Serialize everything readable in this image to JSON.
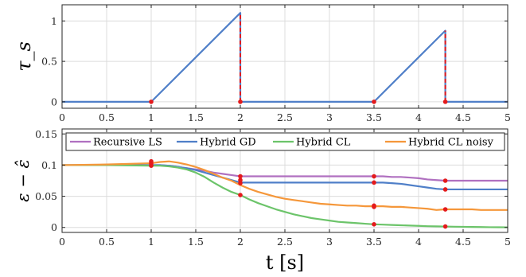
{
  "chart_data": [
    {
      "type": "line",
      "title": "",
      "xlabel": "",
      "ylabel": "τ_s",
      "xlim": [
        0,
        5
      ],
      "ylim": [
        -0.08,
        1.2
      ],
      "xticks": [
        0,
        0.5,
        1,
        1.5,
        2,
        2.5,
        3,
        3.5,
        4,
        4.5,
        5
      ],
      "xtick_labels": [
        "0",
        "0.5",
        "1",
        "1.5",
        "2",
        "2.5",
        "3",
        "3.5",
        "4",
        "4.5",
        "5"
      ],
      "yticks": [
        0,
        0.5,
        1
      ],
      "ytick_labels": [
        "0",
        "0.5",
        "1"
      ],
      "grid": true,
      "series": [
        {
          "color": "#4f7fc8",
          "x": [
            0,
            1,
            2,
            2,
            3.5,
            4.3,
            4.3,
            5
          ],
          "y": [
            0,
            0,
            1.1,
            0,
            0,
            0.88,
            0,
            0
          ]
        }
      ],
      "reset_lines": [
        {
          "x": 2,
          "y_from": 0,
          "y_to": 1.1
        },
        {
          "x": 4.3,
          "y_from": 0,
          "y_to": 0.88
        }
      ],
      "markers": [
        {
          "x": 1,
          "y": 0
        },
        {
          "x": 2,
          "y": 0
        },
        {
          "x": 3.5,
          "y": 0
        },
        {
          "x": 4.3,
          "y": 0
        }
      ],
      "accent_color": "#e41a1c"
    },
    {
      "type": "line",
      "title": "",
      "xlabel": "t [s]",
      "ylabel": "ε − ε̂",
      "xlim": [
        0,
        5
      ],
      "ylim": [
        -0.008,
        0.158
      ],
      "xticks": [
        0,
        0.5,
        1,
        1.5,
        2,
        2.5,
        3,
        3.5,
        4,
        4.5,
        5
      ],
      "xtick_labels": [
        "0",
        "0.5",
        "1",
        "1.5",
        "2",
        "2.5",
        "3",
        "3.5",
        "4",
        "4.5",
        "5"
      ],
      "yticks": [
        0,
        0.05,
        0.1,
        0.15
      ],
      "ytick_labels": [
        "0",
        "0.05",
        "0.1",
        "0.15"
      ],
      "grid": true,
      "legend": "top",
      "x": [
        0,
        0.5,
        1,
        1.1,
        1.2,
        1.3,
        1.4,
        1.5,
        1.6,
        1.7,
        1.8,
        1.9,
        2,
        2.1,
        2.2,
        2.3,
        2.4,
        2.5,
        2.6,
        2.7,
        2.8,
        2.9,
        3,
        3.1,
        3.2,
        3.3,
        3.4,
        3.5,
        3.6,
        3.7,
        3.8,
        3.9,
        4,
        4.1,
        4.2,
        4.3,
        4.4,
        4.5,
        4.6,
        4.7,
        4.8,
        4.9,
        5
      ],
      "series": [
        {
          "name": "Recursive LS",
          "color": "#b070c0",
          "values": [
            0.1,
            0.1,
            0.1,
            0.1,
            0.099,
            0.097,
            0.095,
            0.093,
            0.091,
            0.088,
            0.086,
            0.084,
            0.082,
            0.082,
            0.082,
            0.082,
            0.082,
            0.082,
            0.082,
            0.082,
            0.082,
            0.082,
            0.082,
            0.082,
            0.082,
            0.082,
            0.082,
            0.082,
            0.082,
            0.081,
            0.081,
            0.08,
            0.079,
            0.077,
            0.076,
            0.075,
            0.075,
            0.075,
            0.075,
            0.075,
            0.075,
            0.075,
            0.075
          ]
        },
        {
          "name": "Hybrid GD",
          "color": "#4f7fc8",
          "values": [
            0.1,
            0.1,
            0.1,
            0.1,
            0.099,
            0.097,
            0.095,
            0.092,
            0.088,
            0.084,
            0.08,
            0.076,
            0.072,
            0.072,
            0.072,
            0.072,
            0.072,
            0.072,
            0.072,
            0.072,
            0.072,
            0.072,
            0.072,
            0.072,
            0.072,
            0.072,
            0.072,
            0.072,
            0.072,
            0.071,
            0.07,
            0.068,
            0.066,
            0.064,
            0.062,
            0.061,
            0.061,
            0.061,
            0.061,
            0.061,
            0.061,
            0.061,
            0.061
          ]
        },
        {
          "name": "Hybrid CL",
          "color": "#6cc46a",
          "values": [
            0.1,
            0.1,
            0.099,
            0.099,
            0.098,
            0.096,
            0.093,
            0.088,
            0.081,
            0.072,
            0.064,
            0.057,
            0.052,
            0.045,
            0.039,
            0.034,
            0.029,
            0.025,
            0.021,
            0.018,
            0.015,
            0.013,
            0.011,
            0.009,
            0.008,
            0.007,
            0.006,
            0.005,
            0.0045,
            0.004,
            0.0035,
            0.003,
            0.0025,
            0.002,
            0.0017,
            0.0015,
            0.0012,
            0.001,
            0.0008,
            0.0006,
            0.0004,
            0.0003,
            0.0002
          ]
        },
        {
          "name": "Hybrid CL noisy",
          "color": "#f5973a",
          "values": [
            0.1,
            0.101,
            0.103,
            0.105,
            0.106,
            0.104,
            0.101,
            0.097,
            0.092,
            0.086,
            0.08,
            0.075,
            0.068,
            0.062,
            0.057,
            0.053,
            0.049,
            0.046,
            0.044,
            0.042,
            0.04,
            0.038,
            0.037,
            0.036,
            0.035,
            0.035,
            0.034,
            0.034,
            0.034,
            0.033,
            0.033,
            0.032,
            0.031,
            0.03,
            0.028,
            0.029,
            0.029,
            0.029,
            0.029,
            0.028,
            0.028,
            0.028,
            0.028
          ]
        }
      ],
      "markers": [
        {
          "x": 1,
          "y": 0.1
        },
        {
          "x": 1,
          "y": 0.099
        },
        {
          "x": 1,
          "y": 0.103
        },
        {
          "x": 1,
          "y": 0.106
        },
        {
          "x": 2,
          "y": 0.082
        },
        {
          "x": 2,
          "y": 0.076
        },
        {
          "x": 2,
          "y": 0.071
        },
        {
          "x": 2,
          "y": 0.052
        },
        {
          "x": 3.5,
          "y": 0.082
        },
        {
          "x": 3.5,
          "y": 0.072
        },
        {
          "x": 3.5,
          "y": 0.035
        },
        {
          "x": 3.5,
          "y": 0.033
        },
        {
          "x": 3.5,
          "y": 0.005
        },
        {
          "x": 4.3,
          "y": 0.075
        },
        {
          "x": 4.3,
          "y": 0.061
        },
        {
          "x": 4.3,
          "y": 0.029
        },
        {
          "x": 4.3,
          "y": 0.0015
        }
      ],
      "accent_color": "#e41a1c"
    }
  ]
}
